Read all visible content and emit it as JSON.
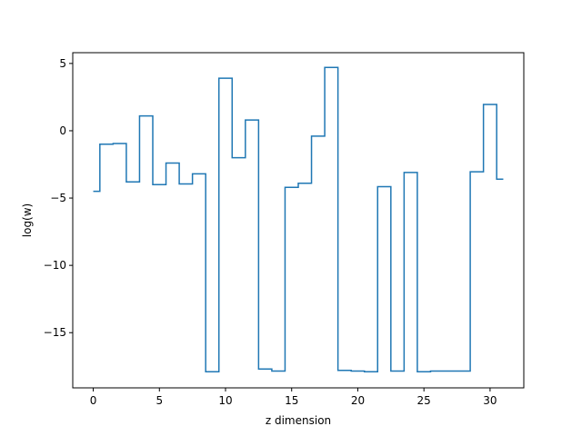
{
  "chart_data": {
    "type": "line",
    "drawstyle": "steps-mid",
    "title": "",
    "xlabel": "z dimension",
    "ylabel": "log(w)",
    "xlim": [
      -1.55,
      32.55
    ],
    "ylim": [
      -19.1,
      5.8
    ],
    "xticks": [
      0,
      5,
      10,
      15,
      20,
      25,
      30
    ],
    "yticks": [
      5,
      0,
      -5,
      -10,
      -15
    ],
    "ytick_labels": [
      "5",
      "0",
      "−5",
      "−10",
      "−15"
    ],
    "grid": false,
    "legend": "none",
    "series": [
      {
        "color": "#1f77b4",
        "x": [
          0,
          1,
          2,
          3,
          4,
          5,
          6,
          7,
          8,
          9,
          10,
          11,
          12,
          13,
          14,
          15,
          16,
          17,
          18,
          19,
          20,
          21,
          22,
          23,
          24,
          25,
          26,
          27,
          28,
          29,
          30,
          31
        ],
        "values": [
          -4.5,
          -1.0,
          -0.95,
          -3.8,
          1.1,
          -4.0,
          -2.4,
          -3.95,
          -3.2,
          -17.9,
          3.9,
          -2.0,
          0.8,
          -17.7,
          -17.85,
          -4.2,
          -3.9,
          -0.4,
          4.7,
          -17.8,
          -17.85,
          -17.9,
          -4.15,
          -17.85,
          -3.1,
          -17.9,
          -17.85,
          -17.85,
          -17.85,
          -3.05,
          1.95,
          -3.6
        ]
      }
    ]
  }
}
